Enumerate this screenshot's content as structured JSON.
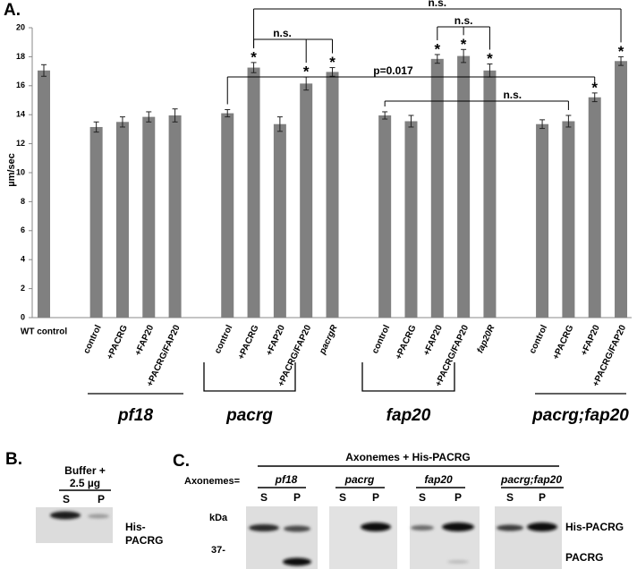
{
  "chart_data": {
    "type": "bar",
    "panel_label": "A.",
    "y_label": "µm/sec",
    "color": "#808080",
    "categories": [
      "WT control",
      null,
      "control",
      "+PACRG",
      "+FAP20",
      "+PACRG/FAP20",
      null,
      "control",
      "+PACRG",
      "+FAP20",
      "+PACRG/FAP20",
      "pacrgR",
      null,
      "control",
      "+PACRG",
      "+FAP20",
      "+PACRG/FAP20",
      "fap20R",
      null,
      "control",
      "+PACRG",
      "+FAP20",
      "+PACRG/FAP20"
    ],
    "values": [
      17.05,
      null,
      13.15,
      13.5,
      13.85,
      13.95,
      null,
      14.1,
      17.25,
      13.35,
      16.15,
      16.95,
      null,
      13.95,
      13.55,
      17.85,
      18.05,
      17.05,
      null,
      13.35,
      13.55,
      15.2,
      17.7
    ],
    "errors": [
      0.4,
      null,
      0.35,
      0.35,
      0.35,
      0.45,
      null,
      0.25,
      0.35,
      0.5,
      0.45,
      0.3,
      null,
      0.25,
      0.4,
      0.3,
      0.45,
      0.45,
      null,
      0.3,
      0.4,
      0.3,
      0.3
    ],
    "stars": [
      null,
      null,
      null,
      null,
      null,
      null,
      null,
      null,
      "*",
      null,
      "*",
      "*",
      null,
      null,
      null,
      "*",
      "*",
      "*",
      null,
      null,
      null,
      "*",
      "*"
    ],
    "ylim": [
      0,
      20
    ],
    "yticks": [
      0,
      2,
      4,
      6,
      8,
      10,
      12,
      14,
      16,
      18,
      20
    ],
    "brackets": [
      {
        "label": "n.s.",
        "bars": [
          8,
          22
        ]
      },
      {
        "label": "n.s.",
        "bars": [
          8,
          10,
          11
        ]
      },
      {
        "label": "n.s.",
        "bars": [
          15,
          16,
          17
        ]
      },
      {
        "label": "p=0.017",
        "bars": [
          7,
          21
        ]
      },
      {
        "label": "n.s.",
        "bars": [
          13,
          20
        ]
      }
    ],
    "groups": [
      "pf18",
      "pacrg",
      "fap20",
      "pacrg;fap20"
    ]
  },
  "panel_b": {
    "label": "B.",
    "title": [
      "Buffer +",
      "2.5 µg"
    ],
    "lanes": [
      "S",
      "P"
    ],
    "band_label": [
      "His-",
      "PACRG"
    ]
  },
  "panel_c": {
    "label": "C.",
    "title": "Axonemes + His-PACRG",
    "row_label": "Axonemes=",
    "strains": [
      "pf18",
      "pacrg",
      "fap20",
      "pacrg;fap20"
    ],
    "lanes": [
      "S",
      "P"
    ],
    "marker_unit": "kDa",
    "marker": "37-",
    "band_labels": [
      "His-PACRG",
      "PACRG"
    ]
  }
}
